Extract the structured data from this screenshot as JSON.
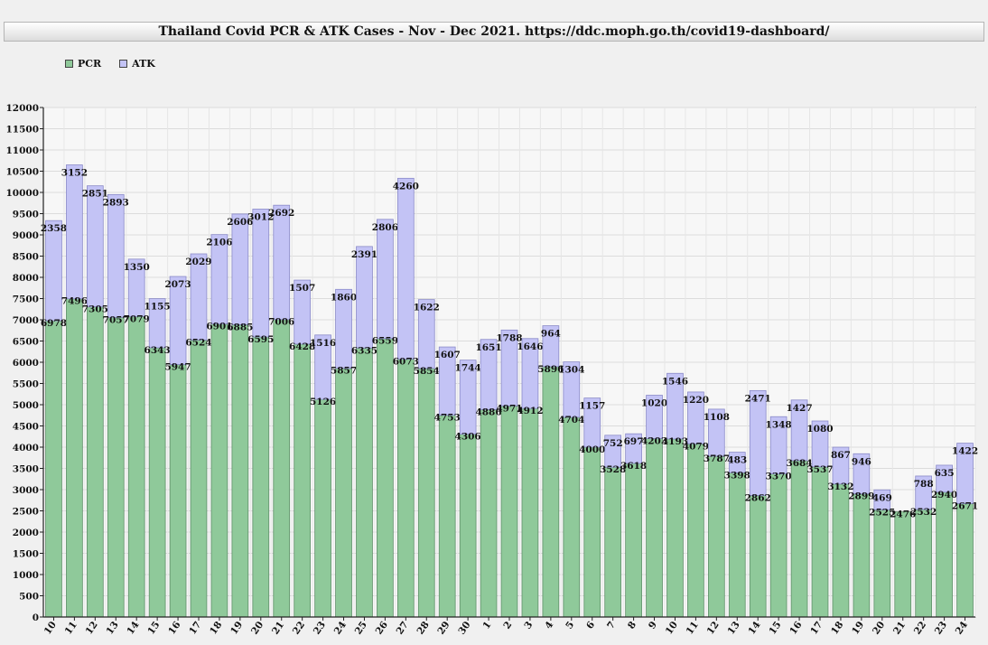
{
  "chart_data": {
    "type": "bar",
    "stacked": true,
    "title": "Thailand Covid PCR & ATK Cases - Nov - Dec 2021. https://ddc.moph.go.th/covid19-dashboard/",
    "categories": [
      "10",
      "11",
      "12",
      "13",
      "14",
      "15",
      "16",
      "17",
      "18",
      "19",
      "20",
      "21",
      "22",
      "23",
      "24",
      "25",
      "26",
      "27",
      "28",
      "29",
      "30",
      "1",
      "2",
      "3",
      "4",
      "5",
      "6",
      "7",
      "8",
      "9",
      "10",
      "11",
      "12",
      "13",
      "14",
      "15",
      "16",
      "17",
      "18",
      "19",
      "20",
      "21",
      "22",
      "23",
      "24"
    ],
    "series": [
      {
        "name": "PCR",
        "color": "#8fc99a",
        "values": [
          6978,
          7496,
          7305,
          7057,
          7079,
          6343,
          5947,
          6524,
          6901,
          6885,
          6595,
          7006,
          6428,
          5126,
          5857,
          6335,
          6559,
          6073,
          5854,
          4753,
          4306,
          4886,
          4971,
          4912,
          5896,
          4704,
          4000,
          3528,
          3618,
          4203,
          4193,
          4079,
          3787,
          3398,
          2862,
          3370,
          3684,
          3537,
          3132,
          2899,
          2525,
          2476,
          2532,
          2940,
          2671
        ]
      },
      {
        "name": "ATK",
        "color": "#c3c3f5",
        "values": [
          2358,
          3152,
          2851,
          2893,
          1350,
          1155,
          2073,
          2029,
          2106,
          2606,
          3012,
          2692,
          1507,
          1516,
          1860,
          2391,
          2806,
          4260,
          1622,
          1607,
          1744,
          1651,
          1788,
          1646,
          964,
          1304,
          1157,
          752,
          697,
          1020,
          1546,
          1220,
          1108,
          483,
          2471,
          1348,
          1427,
          1080,
          867,
          946,
          469,
          null,
          788,
          635,
          1422
        ]
      }
    ],
    "ylim": [
      0,
      12000
    ],
    "ytick_step": 500,
    "grid": true,
    "legend_position": "top-left"
  }
}
